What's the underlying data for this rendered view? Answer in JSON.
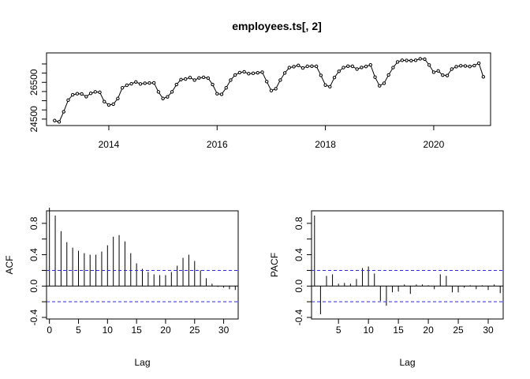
{
  "chart_data": [
    {
      "type": "line",
      "title": "employees.ts[, 2]",
      "xlabel": "",
      "ylabel": "",
      "xlim": [
        2012.85,
        2021.05
      ],
      "ylim": [
        24150,
        28100
      ],
      "x_ticks": [
        2014,
        2016,
        2018,
        2020
      ],
      "y_ticks": [
        24500,
        26500
      ],
      "y_ticks_minor": [
        25000,
        25500,
        26000,
        27000,
        27500
      ],
      "start": 2013.0,
      "frequency": 12,
      "series": [
        {
          "values": [
            24420,
            24350,
            24900,
            25530,
            25820,
            25880,
            25870,
            25720,
            25900,
            25980,
            25960,
            25450,
            25270,
            25310,
            25620,
            26200,
            26340,
            26420,
            26520,
            26410,
            26450,
            26460,
            26470,
            25980,
            25620,
            25710,
            25980,
            26380,
            26650,
            26680,
            26760,
            26620,
            26740,
            26770,
            26730,
            26380,
            25880,
            25850,
            26200,
            26620,
            26900,
            27030,
            27070,
            26970,
            26990,
            27020,
            27050,
            26540,
            26050,
            26150,
            26620,
            27010,
            27300,
            27350,
            27420,
            27280,
            27370,
            27380,
            27370,
            26880,
            26350,
            26260,
            26760,
            27100,
            27300,
            27380,
            27370,
            27220,
            27310,
            27360,
            27450,
            26780,
            26310,
            26450,
            26900,
            27300,
            27610,
            27700,
            27690,
            27680,
            27700,
            27780,
            27760,
            27440,
            27050,
            27120,
            26890,
            26870,
            27220,
            27350,
            27400,
            27390,
            27360,
            27410,
            27540,
            26800
          ]
        }
      ]
    },
    {
      "type": "bar",
      "xlabel": "Lag",
      "ylabel": "ACF",
      "xlim": [
        -0.5,
        32.5
      ],
      "ylim": [
        -0.42,
        0.96
      ],
      "x_ticks": [
        0,
        5,
        10,
        15,
        20,
        25,
        30
      ],
      "y_ticks": [
        -0.4,
        0.0,
        0.4,
        0.8
      ],
      "y_ticks_minor": [
        -0.2,
        0.2,
        0.6
      ],
      "ci": [
        0.2,
        -0.2
      ],
      "lags": [
        1,
        2,
        3,
        4,
        5,
        6,
        7,
        8,
        9,
        10,
        11,
        12,
        13,
        14,
        15,
        16,
        17,
        18,
        19,
        20,
        21,
        22,
        23,
        24,
        25,
        26,
        27,
        28,
        29,
        30,
        31,
        32
      ],
      "values": [
        0.9,
        0.7,
        0.56,
        0.49,
        0.45,
        0.42,
        0.4,
        0.4,
        0.44,
        0.52,
        0.63,
        0.65,
        0.57,
        0.42,
        0.29,
        0.22,
        0.18,
        0.15,
        0.14,
        0.14,
        0.18,
        0.26,
        0.36,
        0.4,
        0.32,
        0.2,
        0.1,
        0.03,
        -0.01,
        -0.02,
        -0.04,
        -0.05
      ]
    },
    {
      "type": "bar",
      "xlabel": "Lag",
      "ylabel": "PACF",
      "xlim": [
        0.5,
        32.5
      ],
      "ylim": [
        -0.42,
        0.96
      ],
      "x_ticks": [
        5,
        10,
        15,
        20,
        25,
        30
      ],
      "y_ticks": [
        -0.4,
        0.0,
        0.4,
        0.8
      ],
      "y_ticks_minor": [
        -0.2,
        0.2,
        0.6
      ],
      "ci": [
        0.2,
        -0.2
      ],
      "lags": [
        1,
        2,
        3,
        4,
        5,
        6,
        7,
        8,
        9,
        10,
        11,
        12,
        13,
        14,
        15,
        16,
        17,
        18,
        19,
        20,
        21,
        22,
        23,
        24,
        25,
        26,
        27,
        28,
        29,
        30,
        31,
        32
      ],
      "values": [
        0.9,
        -0.36,
        0.13,
        0.15,
        0.03,
        0.04,
        0.03,
        0.09,
        0.23,
        0.25,
        0.16,
        -0.19,
        -0.25,
        -0.08,
        -0.07,
        0.02,
        -0.1,
        0.02,
        0.02,
        0.01,
        -0.04,
        0.15,
        0.13,
        -0.08,
        -0.08,
        -0.02,
        0.01,
        -0.04,
        0.01,
        -0.05,
        0.02,
        -0.09
      ]
    }
  ]
}
